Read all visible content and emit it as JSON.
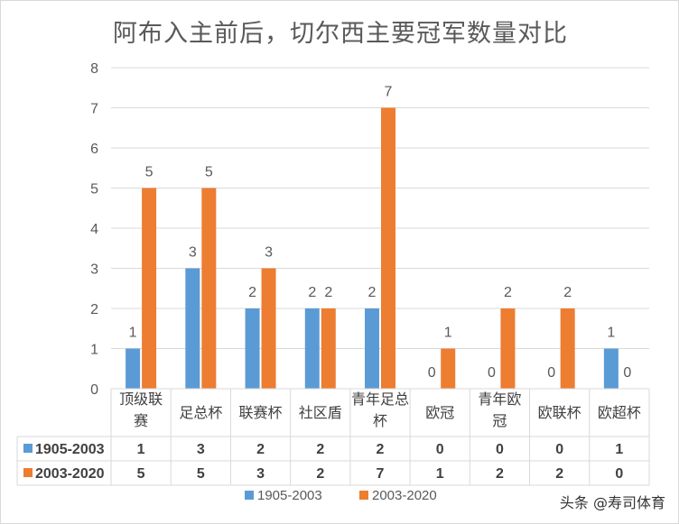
{
  "chart_data": {
    "type": "bar",
    "title": "阿布入主前后，切尔西主要冠军数量对比",
    "categories": [
      "顶级联赛",
      "足总杯",
      "联赛杯",
      "社区盾",
      "青年足总杯",
      "欧冠",
      "青年欧冠",
      "欧联杯",
      "欧超杯"
    ],
    "series": [
      {
        "name": "1905-2003",
        "values": [
          1,
          3,
          2,
          2,
          2,
          0,
          0,
          0,
          1
        ],
        "color": "#5b9bd5"
      },
      {
        "name": "2003-2020",
        "values": [
          5,
          5,
          3,
          2,
          7,
          1,
          2,
          2,
          0
        ],
        "color": "#ed7d31"
      }
    ],
    "ylim": [
      0,
      8
    ],
    "yticks": [
      0,
      1,
      2,
      3,
      4,
      5,
      6,
      7,
      8
    ],
    "grid": true,
    "data_labels": true,
    "data_table": true,
    "legend": "bottom"
  },
  "watermark": "头条 @寿司体育"
}
